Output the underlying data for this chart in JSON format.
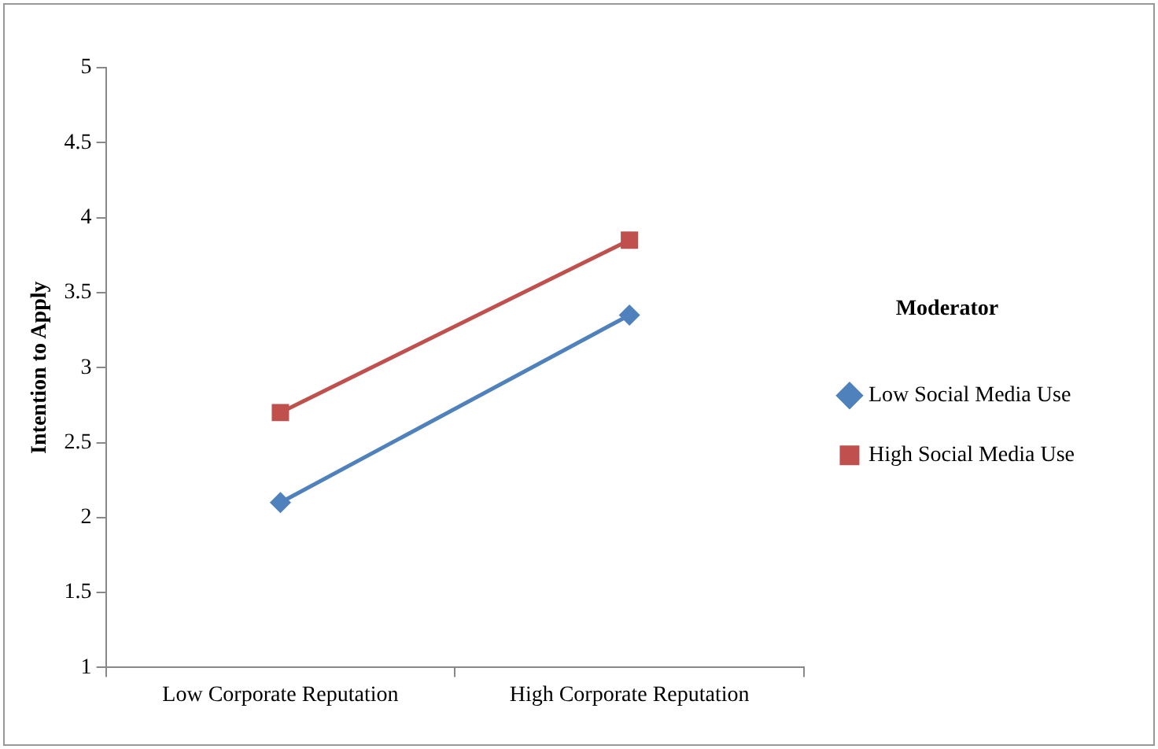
{
  "chart_data": {
    "type": "line",
    "ylabel": "Intention to Apply",
    "legend_title": "Moderator",
    "legend": "right",
    "grid": false,
    "categories": [
      "Low Corporate Reputation",
      "High Corporate Reputation"
    ],
    "ylim": [
      1,
      5
    ],
    "yticks": [
      1,
      1.5,
      2,
      2.5,
      3,
      3.5,
      4,
      4.5,
      5
    ],
    "series": [
      {
        "name": "Low Social Media Use",
        "color": "#4f81bd",
        "marker": "diamond",
        "values": [
          2.1,
          3.35
        ]
      },
      {
        "name": "High Social Media Use",
        "color": "#c0504d",
        "marker": "square",
        "values": [
          2.7,
          3.85
        ]
      }
    ]
  }
}
